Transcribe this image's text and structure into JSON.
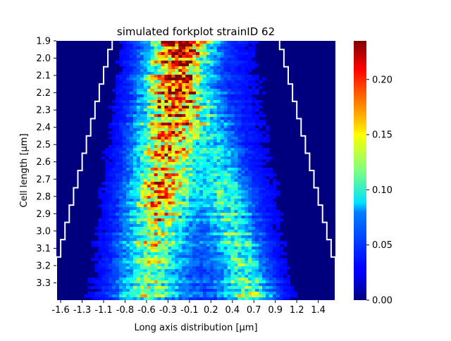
{
  "chart_data": {
    "type": "heatmap",
    "title": "simulated forkplot strainID 62",
    "xlabel": "Long axis distribution [μm]",
    "ylabel": "Cell length [μm]",
    "x_tick_labels": [
      "-1.6",
      "-1.3",
      "-1.1",
      "-0.8",
      "-0.6",
      "-0.3",
      "-0.1",
      "0.2",
      "0.4",
      "0.7",
      "0.9",
      "1.2",
      "1.4"
    ],
    "x_tick_values": [
      -1.6,
      -1.35,
      -1.1,
      -0.85,
      -0.6,
      -0.35,
      -0.1,
      0.15,
      0.4,
      0.65,
      0.9,
      1.15,
      1.4
    ],
    "xlim": [
      -1.65,
      1.6
    ],
    "y_tick_labels": [
      "1.9",
      "2.0",
      "2.1",
      "2.2",
      "2.3",
      "2.4",
      "2.5",
      "2.6",
      "2.7",
      "2.8",
      "2.9",
      "3.0",
      "3.1",
      "3.2",
      "3.3"
    ],
    "y_tick_values": [
      1.9,
      2.0,
      2.1,
      2.2,
      2.3,
      2.4,
      2.5,
      2.6,
      2.7,
      2.8,
      2.9,
      3.0,
      3.1,
      3.2,
      3.3
    ],
    "ylim": [
      1.9,
      3.4
    ],
    "colorbar": {
      "min": 0.0,
      "max": 0.235,
      "tick_labels": [
        "0.00",
        "0.05",
        "0.10",
        "0.15",
        "0.20"
      ],
      "tick_values": [
        0.0,
        0.05,
        0.1,
        0.15,
        0.2
      ],
      "colormap": "jet"
    },
    "density_model": {
      "lobes": [
        {
          "center_start": -0.2,
          "center_end": -0.6,
          "y_start": 1.9,
          "y_end": 3.4,
          "width": 0.22,
          "peak_start": 0.2,
          "peak_end": 0.08
        },
        {
          "center_start": 0.05,
          "center_end": 0.6,
          "y_start": 2.2,
          "y_end": 3.4,
          "width": 0.18,
          "peak_start": 0.03,
          "peak_end": 0.09
        }
      ],
      "extent_half_width_start": 0.9,
      "extent_half_width_end": 1.35
    },
    "cell_boundary": {
      "color": "#ffffff",
      "y": [
        1.9,
        1.95,
        2.05,
        2.15,
        2.25,
        2.35,
        2.45,
        2.55,
        2.65,
        2.75,
        2.85,
        2.95,
        3.05,
        3.15,
        3.25
      ],
      "left_x": [
        -1.0,
        -1.05,
        -1.1,
        -1.15,
        -1.2,
        -1.25,
        -1.3,
        -1.35,
        -1.4,
        -1.45,
        -1.5,
        -1.55,
        -1.6,
        -1.65,
        -1.65
      ],
      "right_x": [
        0.95,
        1.0,
        1.05,
        1.1,
        1.15,
        1.2,
        1.25,
        1.3,
        1.35,
        1.4,
        1.45,
        1.5,
        1.55,
        1.6,
        1.6
      ]
    }
  }
}
